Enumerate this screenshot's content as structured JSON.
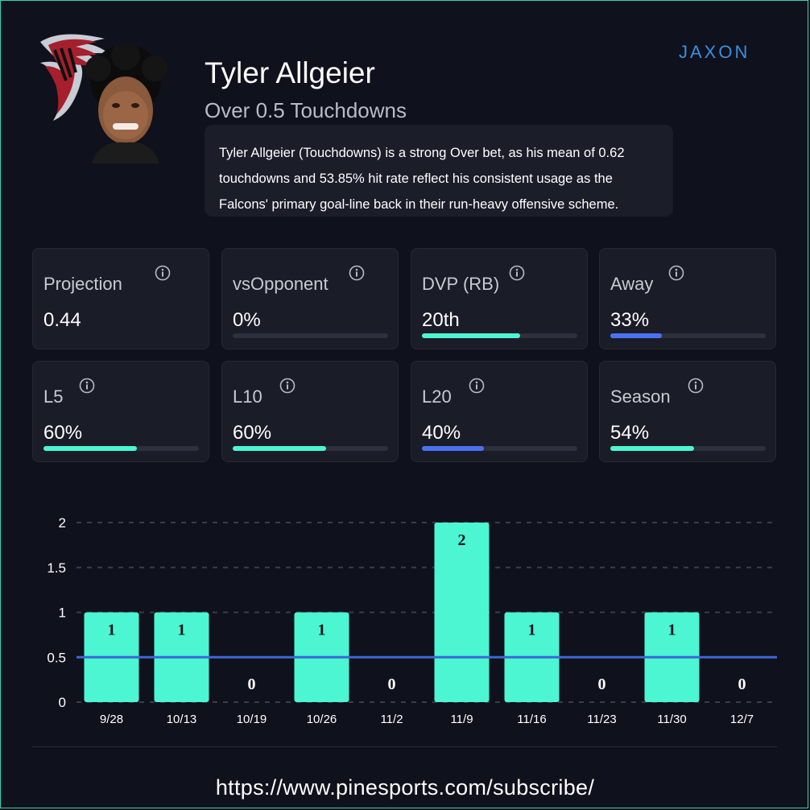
{
  "player": {
    "name": "Tyler Allgeier",
    "prop": "Over 0.5 Touchdowns",
    "description": "Tyler Allgeier (Touchdowns) is a strong Over bet, as his mean of 0.62 touchdowns and 53.85% hit rate reflect his consistent usage as the Falcons' primary goal-line back in their run-heavy offensive scheme."
  },
  "brand": {
    "wordmark": "JAXON"
  },
  "colors": {
    "background": "#0f111c",
    "card": "#1a1c27",
    "accent_green": "#4cf6d2",
    "accent_blue": "#4a72f0",
    "threshold_line": "#3c67d8"
  },
  "stats": [
    {
      "label": "Projection",
      "value": "0.44",
      "bar": null,
      "bar_color": null
    },
    {
      "label": "vsOpponent",
      "value": "0%",
      "bar": 0,
      "bar_color": "#4cf6d2"
    },
    {
      "label": "DVP (RB)",
      "value": "20th",
      "bar": 0.63,
      "bar_color": "#4cf6d2"
    },
    {
      "label": "Away",
      "value": "33%",
      "bar": 0.33,
      "bar_color": "#4a72f0"
    },
    {
      "label": "L5",
      "value": "60%",
      "bar": 0.6,
      "bar_color": "#4cf6d2"
    },
    {
      "label": "L10",
      "value": "60%",
      "bar": 0.6,
      "bar_color": "#4cf6d2"
    },
    {
      "label": "L20",
      "value": "40%",
      "bar": 0.4,
      "bar_color": "#4a72f0"
    },
    {
      "label": "Season",
      "value": "54%",
      "bar": 0.54,
      "bar_color": "#4cf6d2"
    }
  ],
  "chart_data": {
    "type": "bar",
    "categories": [
      "9/28",
      "10/13",
      "10/19",
      "10/26",
      "11/2",
      "11/9",
      "11/16",
      "11/23",
      "11/30",
      "12/7"
    ],
    "values": [
      1,
      1,
      0,
      1,
      0,
      2,
      1,
      0,
      1,
      0
    ],
    "y_ticks": [
      "0",
      "0.5",
      "1",
      "1.5",
      "2"
    ],
    "ylim": [
      0,
      2
    ],
    "threshold": 0.5,
    "grid": true,
    "bar_color": "#4cf6d2",
    "title": "",
    "xlabel": "",
    "ylabel": ""
  },
  "footer": {
    "url": "https://www.pinesports.com/subscribe/"
  }
}
